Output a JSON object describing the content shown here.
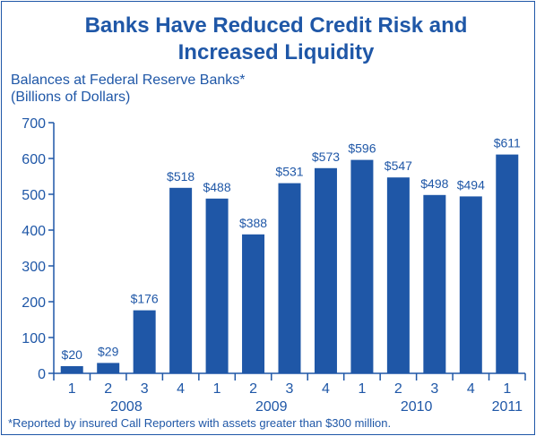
{
  "chart_data": {
    "type": "bar",
    "title_lines": [
      "Banks Have Reduced Credit Risk and",
      "Increased Liquidity"
    ],
    "subtitle_lines": [
      "Balances at Federal Reserve Banks*",
      "(Billions of Dollars)"
    ],
    "categories": [
      "1",
      "2",
      "3",
      "4",
      "1",
      "2",
      "3",
      "4",
      "1",
      "2",
      "3",
      "4",
      "1"
    ],
    "years": [
      {
        "label": "2008",
        "from": 0,
        "to": 3
      },
      {
        "label": "2009",
        "from": 4,
        "to": 7
      },
      {
        "label": "2010",
        "from": 8,
        "to": 11
      },
      {
        "label": "2011",
        "from": 12,
        "to": 12
      }
    ],
    "values": [
      20,
      29,
      176,
      518,
      488,
      388,
      531,
      573,
      596,
      547,
      498,
      494,
      611
    ],
    "data_labels": [
      "$20",
      "$29",
      "$176",
      "$518",
      "$488",
      "$388",
      "$531",
      "$573",
      "$596",
      "$547",
      "$498",
      "$494",
      "$611"
    ],
    "ylim": [
      0,
      700
    ],
    "yticks": [
      0,
      100,
      200,
      300,
      400,
      500,
      600,
      700
    ],
    "grid": false,
    "bar_color": "#1f57a7",
    "text_color": "#1f57a7",
    "footnote": "*Reported by insured Call Reporters with assets greater than $300 million."
  }
}
